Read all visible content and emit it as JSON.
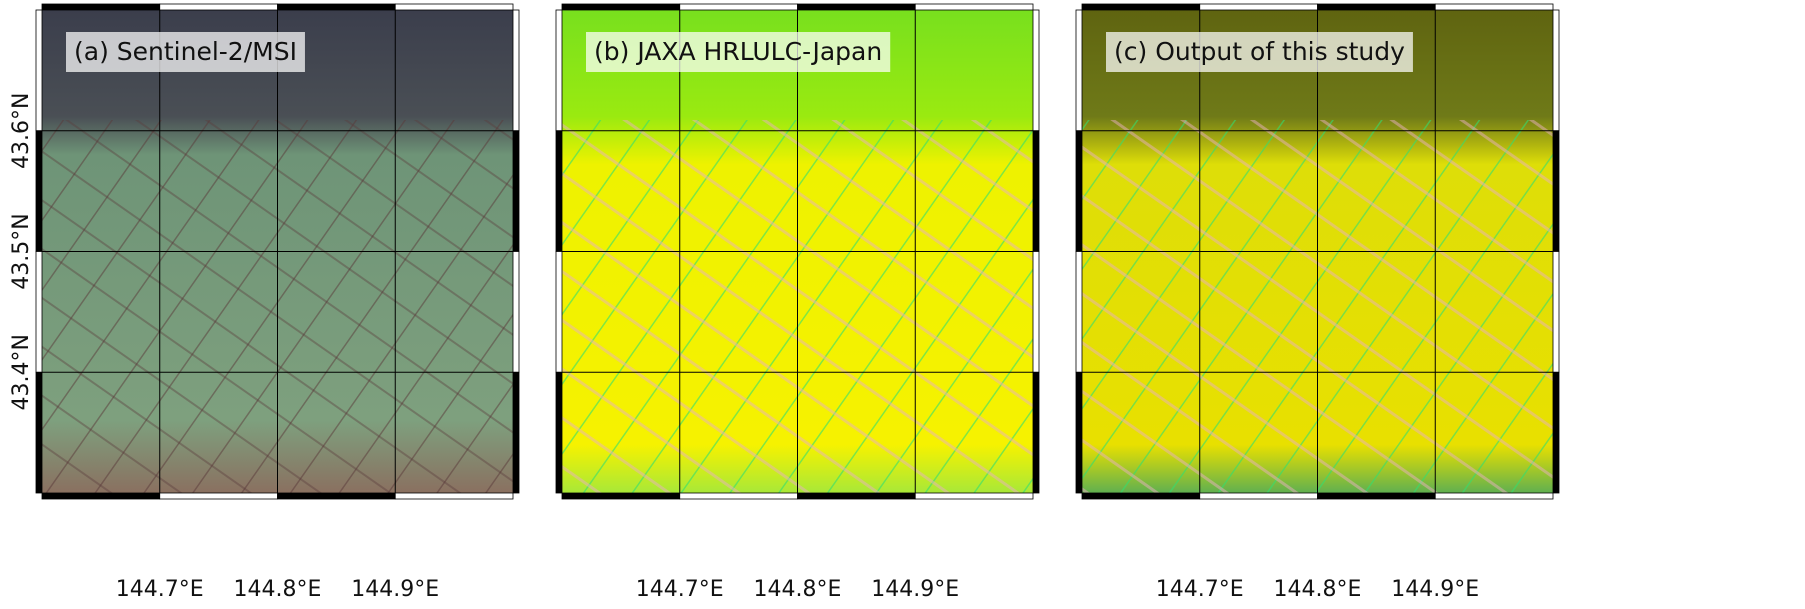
{
  "panels": [
    {
      "title": "(a) Sentinel-2/MSI"
    },
    {
      "title": "(b) JAXA HRLULC-Japan"
    },
    {
      "title": "(c) Output of this study"
    }
  ],
  "lon_range": [
    144.6,
    145.0
  ],
  "lat_range": [
    43.3,
    43.7
  ],
  "lon_ticks": [
    {
      "value": 144.7,
      "label": "144.7°E"
    },
    {
      "value": 144.8,
      "label": "144.8°E"
    },
    {
      "value": 144.9,
      "label": "144.9°E"
    }
  ],
  "lat_ticks": [
    {
      "value": 43.4,
      "label": "43.4°N"
    },
    {
      "value": 43.5,
      "label": "43.5°N"
    },
    {
      "value": 43.6,
      "label": "43.6°N"
    }
  ]
}
